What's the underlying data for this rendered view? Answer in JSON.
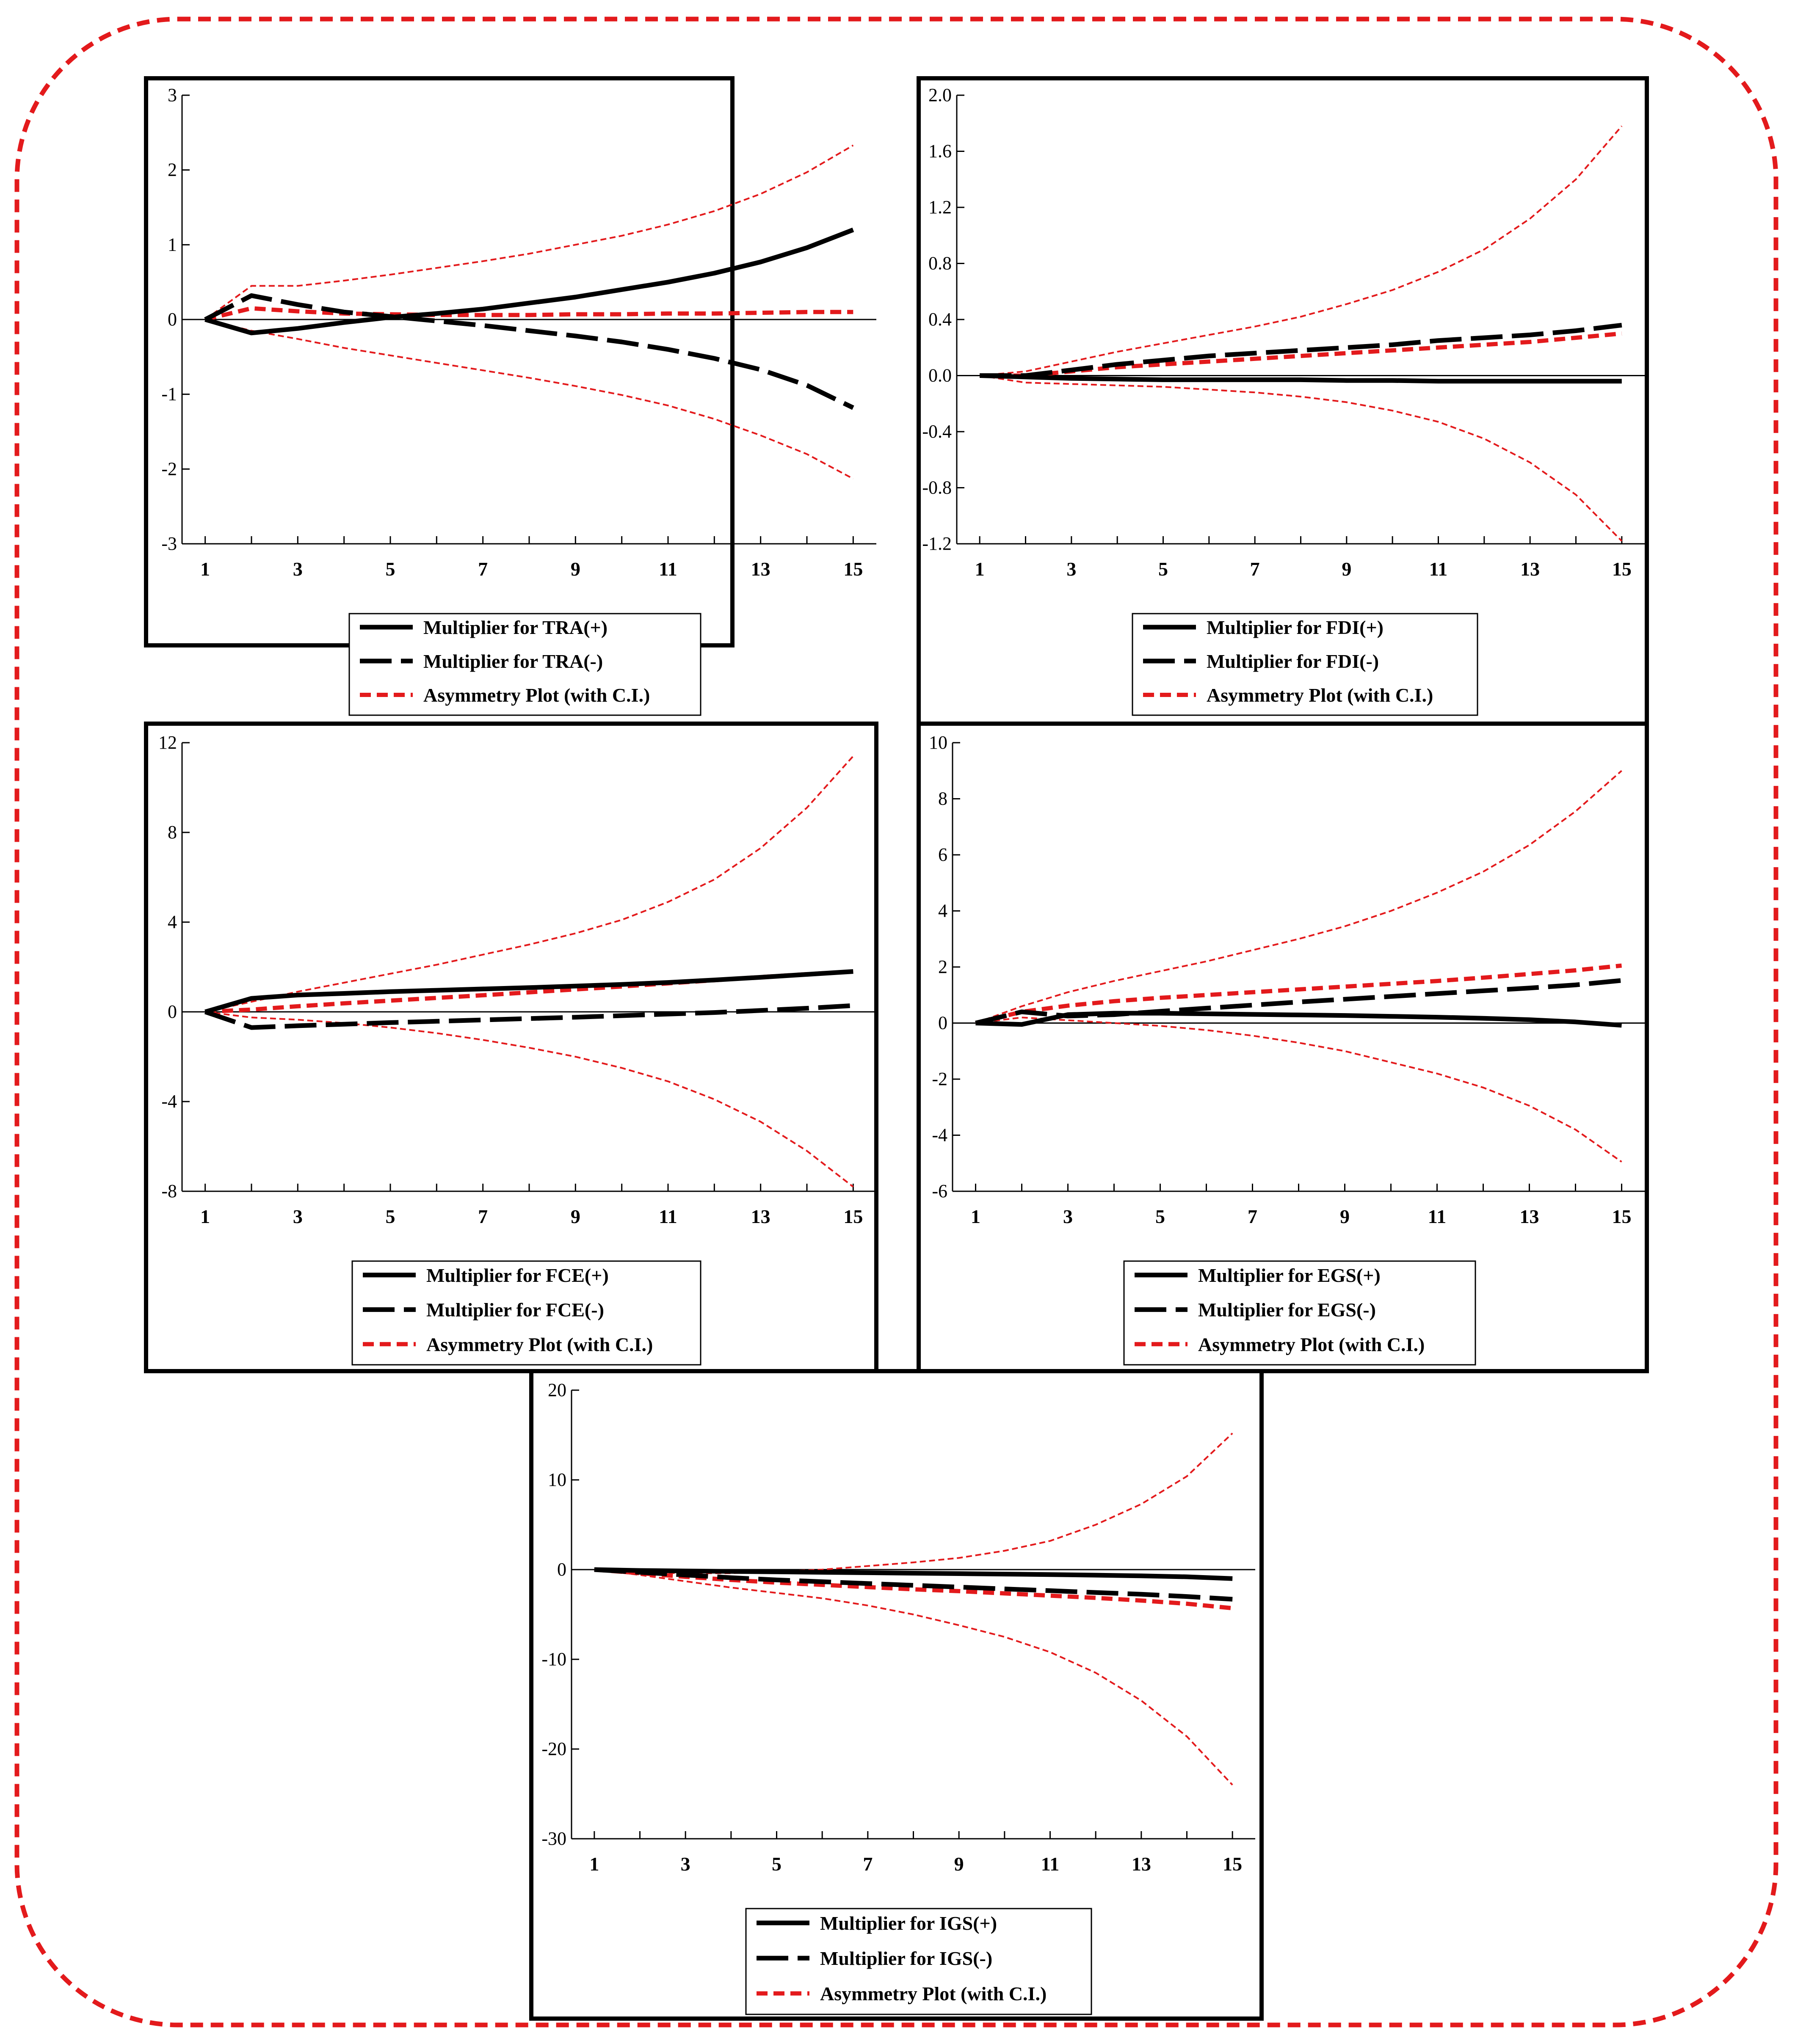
{
  "colors": {
    "frame": "#e31a1c",
    "asym": "#e31a1c",
    "multiplier": "#000000",
    "axis": "#000000"
  },
  "chart_data": [
    {
      "id": "tra",
      "type": "line",
      "x": [
        1,
        2,
        3,
        4,
        5,
        6,
        7,
        8,
        9,
        10,
        11,
        12,
        13,
        14,
        15
      ],
      "xticks": [
        "1",
        "3",
        "5",
        "7",
        "9",
        "11",
        "13",
        "15"
      ],
      "xlim": [
        0.5,
        15.5
      ],
      "ylim": [
        -3,
        3
      ],
      "yticks": [
        -3,
        -2,
        -1,
        0,
        1,
        2,
        3
      ],
      "ytick_labels": [
        "-3",
        "-2",
        "-1",
        "0",
        "1",
        "2",
        "3"
      ],
      "series": [
        {
          "name": "Multiplier for TRA(+)",
          "style": "solid",
          "values": [
            0,
            -0.18,
            -0.12,
            -0.04,
            0.03,
            0.08,
            0.14,
            0.22,
            0.3,
            0.4,
            0.5,
            0.62,
            0.77,
            0.96,
            1.2
          ]
        },
        {
          "name": "Multiplier for TRA(-)",
          "style": "longdash",
          "values": [
            0,
            0.32,
            0.2,
            0.1,
            0.04,
            -0.02,
            -0.08,
            -0.15,
            -0.22,
            -0.3,
            -0.4,
            -0.52,
            -0.67,
            -0.88,
            -1.18
          ]
        },
        {
          "name": "Asymmetry Plot (with C.I.)",
          "style": "reddash",
          "values": [
            0,
            0.15,
            0.11,
            0.08,
            0.07,
            0.06,
            0.06,
            0.06,
            0.07,
            0.07,
            0.08,
            0.08,
            0.09,
            0.1,
            0.1
          ]
        },
        {
          "name": "Asymmetry upper C.I.",
          "style": "redthin",
          "values": [
            0,
            0.45,
            0.45,
            0.52,
            0.6,
            0.69,
            0.78,
            0.88,
            1.0,
            1.12,
            1.27,
            1.45,
            1.68,
            1.97,
            2.33
          ]
        },
        {
          "name": "Asymmetry lower C.I.",
          "style": "redthin",
          "values": [
            0,
            -0.15,
            -0.26,
            -0.38,
            -0.48,
            -0.58,
            -0.68,
            -0.78,
            -0.89,
            -1.01,
            -1.15,
            -1.33,
            -1.55,
            -1.8,
            -2.13
          ]
        }
      ],
      "legend": [
        "Multiplier for TRA(+)",
        "Multiplier for TRA(-)",
        "Asymmetry Plot (with C.I.)"
      ]
    },
    {
      "id": "fdi",
      "type": "line",
      "x": [
        1,
        2,
        3,
        4,
        5,
        6,
        7,
        8,
        9,
        10,
        11,
        12,
        13,
        14,
        15
      ],
      "xticks": [
        "1",
        "3",
        "5",
        "7",
        "9",
        "11",
        "13",
        "15"
      ],
      "xlim": [
        0.5,
        15.5
      ],
      "ylim": [
        -1.2,
        2.0
      ],
      "yticks": [
        -1.2,
        -0.8,
        -0.4,
        0.0,
        0.4,
        0.8,
        1.2,
        1.6,
        2.0
      ],
      "ytick_labels": [
        "-1.2",
        "-0.8",
        "-0.4",
        "0.0",
        "0.4",
        "0.8",
        "1.2",
        "1.6",
        "2.0"
      ],
      "series": [
        {
          "name": "Multiplier for FDI(+)",
          "style": "solid",
          "values": [
            0,
            -0.01,
            -0.02,
            -0.025,
            -0.03,
            -0.03,
            -0.03,
            -0.03,
            -0.035,
            -0.035,
            -0.04,
            -0.04,
            -0.04,
            -0.04,
            -0.04
          ]
        },
        {
          "name": "Multiplier for FDI(-)",
          "style": "longdash",
          "values": [
            0,
            0.0,
            0.04,
            0.08,
            0.11,
            0.14,
            0.16,
            0.18,
            0.2,
            0.22,
            0.25,
            0.27,
            0.29,
            0.32,
            0.36
          ]
        },
        {
          "name": "Asymmetry Plot (with C.I.)",
          "style": "reddash",
          "values": [
            0,
            0.0,
            0.03,
            0.06,
            0.08,
            0.1,
            0.12,
            0.14,
            0.16,
            0.18,
            0.2,
            0.22,
            0.24,
            0.27,
            0.3
          ]
        },
        {
          "name": "Asymmetry upper C.I.",
          "style": "redthin",
          "values": [
            0,
            0.03,
            0.1,
            0.17,
            0.23,
            0.29,
            0.35,
            0.42,
            0.51,
            0.61,
            0.74,
            0.9,
            1.12,
            1.4,
            1.78
          ]
        },
        {
          "name": "Asymmetry lower C.I.",
          "style": "redthin",
          "values": [
            0,
            -0.05,
            -0.06,
            -0.07,
            -0.08,
            -0.1,
            -0.12,
            -0.15,
            -0.19,
            -0.25,
            -0.33,
            -0.45,
            -0.62,
            -0.85,
            -1.18
          ]
        }
      ],
      "legend": [
        "Multiplier for FDI(+)",
        "Multiplier for FDI(-)",
        "Asymmetry Plot (with C.I.)"
      ]
    },
    {
      "id": "fce",
      "type": "line",
      "x": [
        1,
        2,
        3,
        4,
        5,
        6,
        7,
        8,
        9,
        10,
        11,
        12,
        13,
        14,
        15
      ],
      "xticks": [
        "1",
        "3",
        "5",
        "7",
        "9",
        "11",
        "13",
        "15"
      ],
      "xlim": [
        0.5,
        15.5
      ],
      "ylim": [
        -8,
        12
      ],
      "yticks": [
        -8,
        -4,
        0,
        4,
        8,
        12
      ],
      "ytick_labels": [
        "-8",
        "-4",
        "0",
        "4",
        "8",
        "12"
      ],
      "series": [
        {
          "name": "Multiplier for FCE(+)",
          "style": "solid",
          "values": [
            0,
            0.6,
            0.75,
            0.82,
            0.9,
            0.96,
            1.02,
            1.08,
            1.15,
            1.22,
            1.31,
            1.42,
            1.54,
            1.67,
            1.8
          ]
        },
        {
          "name": "Multiplier for FCE(-)",
          "style": "longdash",
          "values": [
            0,
            -0.7,
            -0.62,
            -0.55,
            -0.48,
            -0.42,
            -0.36,
            -0.3,
            -0.24,
            -0.17,
            -0.1,
            -0.03,
            0.06,
            0.16,
            0.28
          ]
        },
        {
          "name": "Asymmetry Plot (with C.I.)",
          "style": "reddash",
          "values": [
            0,
            0.1,
            0.25,
            0.38,
            0.5,
            0.62,
            0.74,
            0.87,
            1.0,
            1.13,
            1.27,
            1.41,
            1.55,
            1.68,
            1.8
          ]
        },
        {
          "name": "Asymmetry upper C.I.",
          "style": "redthin",
          "values": [
            0,
            0.45,
            0.9,
            1.3,
            1.7,
            2.1,
            2.55,
            3.0,
            3.5,
            4.1,
            4.9,
            5.9,
            7.3,
            9.1,
            11.4
          ]
        },
        {
          "name": "Asymmetry lower C.I.",
          "style": "redthin",
          "values": [
            0,
            -0.25,
            -0.35,
            -0.5,
            -0.7,
            -0.95,
            -1.25,
            -1.6,
            -2.0,
            -2.5,
            -3.1,
            -3.9,
            -4.9,
            -6.2,
            -7.8
          ]
        }
      ],
      "legend": [
        "Multiplier for FCE(+)",
        "Multiplier for FCE(-)",
        "Asymmetry Plot (with C.I.)"
      ]
    },
    {
      "id": "egs",
      "type": "line",
      "x": [
        1,
        2,
        3,
        4,
        5,
        6,
        7,
        8,
        9,
        10,
        11,
        12,
        13,
        14,
        15
      ],
      "xticks": [
        "1",
        "3",
        "5",
        "7",
        "9",
        "11",
        "13",
        "15"
      ],
      "xlim": [
        0.5,
        15.5
      ],
      "ylim": [
        -6,
        10
      ],
      "yticks": [
        -6,
        -4,
        -2,
        0,
        2,
        4,
        6,
        8,
        10
      ],
      "ytick_labels": [
        "-6",
        "-4",
        "-2",
        "0",
        "2",
        "4",
        "6",
        "8",
        "10"
      ],
      "series": [
        {
          "name": "Multiplier for EGS(+)",
          "style": "solid",
          "values": [
            0,
            -0.05,
            0.3,
            0.35,
            0.35,
            0.33,
            0.31,
            0.29,
            0.27,
            0.24,
            0.21,
            0.17,
            0.12,
            0.04,
            -0.08
          ]
        },
        {
          "name": "Multiplier for EGS(-)",
          "style": "longdash",
          "values": [
            0,
            0.4,
            0.25,
            0.3,
            0.42,
            0.53,
            0.64,
            0.75,
            0.85,
            0.95,
            1.05,
            1.15,
            1.25,
            1.36,
            1.52
          ]
        },
        {
          "name": "Asymmetry Plot (with C.I.)",
          "style": "reddash",
          "values": [
            0,
            0.4,
            0.62,
            0.78,
            0.9,
            1.0,
            1.1,
            1.2,
            1.3,
            1.4,
            1.5,
            1.62,
            1.75,
            1.88,
            2.05
          ]
        },
        {
          "name": "Asymmetry upper C.I.",
          "style": "redthin",
          "values": [
            0,
            0.6,
            1.1,
            1.5,
            1.85,
            2.2,
            2.6,
            3.0,
            3.45,
            4.0,
            4.65,
            5.4,
            6.35,
            7.55,
            9.0
          ]
        },
        {
          "name": "Asymmetry lower C.I.",
          "style": "redthin",
          "values": [
            0,
            0.2,
            0.1,
            0.0,
            -0.1,
            -0.25,
            -0.45,
            -0.7,
            -1.0,
            -1.4,
            -1.8,
            -2.3,
            -2.95,
            -3.8,
            -4.95
          ]
        }
      ],
      "legend": [
        "Multiplier for EGS(+)",
        "Multiplier for EGS(-)",
        "Asymmetry Plot (with C.I.)"
      ]
    },
    {
      "id": "igs",
      "type": "line",
      "x": [
        1,
        2,
        3,
        4,
        5,
        6,
        7,
        8,
        9,
        10,
        11,
        12,
        13,
        14,
        15
      ],
      "xticks": [
        "1",
        "3",
        "5",
        "7",
        "9",
        "11",
        "13",
        "15"
      ],
      "xlim": [
        0.5,
        15.5
      ],
      "ylim": [
        -30,
        20
      ],
      "yticks": [
        -30,
        -20,
        -10,
        0,
        10,
        20
      ],
      "ytick_labels": [
        "-30",
        "-20",
        "-10",
        "0",
        "10",
        "20"
      ],
      "series": [
        {
          "name": "Multiplier for IGS(+)",
          "style": "solid",
          "values": [
            0,
            -0.1,
            -0.15,
            -0.2,
            -0.25,
            -0.3,
            -0.35,
            -0.4,
            -0.45,
            -0.5,
            -0.55,
            -0.62,
            -0.7,
            -0.8,
            -1.0
          ]
        },
        {
          "name": "Multiplier for IGS(-)",
          "style": "longdash",
          "values": [
            0,
            -0.3,
            -0.6,
            -0.9,
            -1.15,
            -1.35,
            -1.55,
            -1.75,
            -1.95,
            -2.15,
            -2.35,
            -2.55,
            -2.75,
            -3.0,
            -3.3
          ]
        },
        {
          "name": "Asymmetry Plot (with C.I.)",
          "style": "reddash",
          "values": [
            0,
            -0.4,
            -0.8,
            -1.15,
            -1.45,
            -1.7,
            -1.95,
            -2.2,
            -2.4,
            -2.65,
            -2.9,
            -3.15,
            -3.45,
            -3.8,
            -4.3
          ]
        },
        {
          "name": "Asymmetry upper C.I.",
          "style": "redthin",
          "values": [
            0,
            -0.3,
            -0.4,
            -0.4,
            -0.2,
            0.0,
            0.4,
            0.8,
            1.3,
            2.1,
            3.2,
            5.0,
            7.3,
            10.4,
            15.2
          ]
        },
        {
          "name": "Asymmetry lower C.I.",
          "style": "redthin",
          "values": [
            0,
            -0.6,
            -1.3,
            -2.0,
            -2.6,
            -3.2,
            -4.0,
            -5.0,
            -6.2,
            -7.5,
            -9.2,
            -11.5,
            -14.6,
            -18.6,
            -24.0
          ]
        }
      ],
      "legend": [
        "Multiplier for IGS(+)",
        "Multiplier for IGS(-)",
        "Asymmetry Plot (with C.I.)"
      ]
    }
  ]
}
